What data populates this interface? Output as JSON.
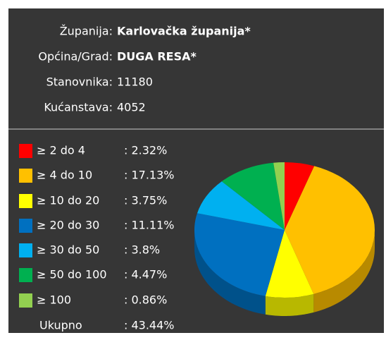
{
  "info": [
    {
      "label": "Županija:",
      "value": "Karlovačka županija*"
    },
    {
      "label": "Općina/Grad:",
      "value": "DUGA RESA*"
    },
    {
      "label": "Stanovnika:",
      "value": 11180
    },
    {
      "label": "Kućanstava:",
      "value": 4052
    }
  ],
  "chart_data": {
    "type": "pie",
    "categories": [
      "≥ 2 do 4",
      "≥ 4 do 10",
      "≥ 10 do 20",
      "≥ 20 do 30",
      "≥ 30 do 50",
      "≥ 50 do 100",
      "≥ 100"
    ],
    "values": [
      2.32,
      17.13,
      3.75,
      11.11,
      3.8,
      4.47,
      0.86
    ],
    "value_labels": [
      ": 2.32%",
      ": 17.13%",
      ": 3.75%",
      ": 11.11%",
      ": 3.8%",
      ": 4.47%",
      ": 0.86%"
    ],
    "colors": [
      "#ff0000",
      "#ffc000",
      "#ffff00",
      "#0070c0",
      "#00b0f0",
      "#00b050",
      "#92d050"
    ],
    "total": {
      "label": "Ukupno",
      "value": 43.44,
      "value_label": ": 43.44%"
    }
  }
}
